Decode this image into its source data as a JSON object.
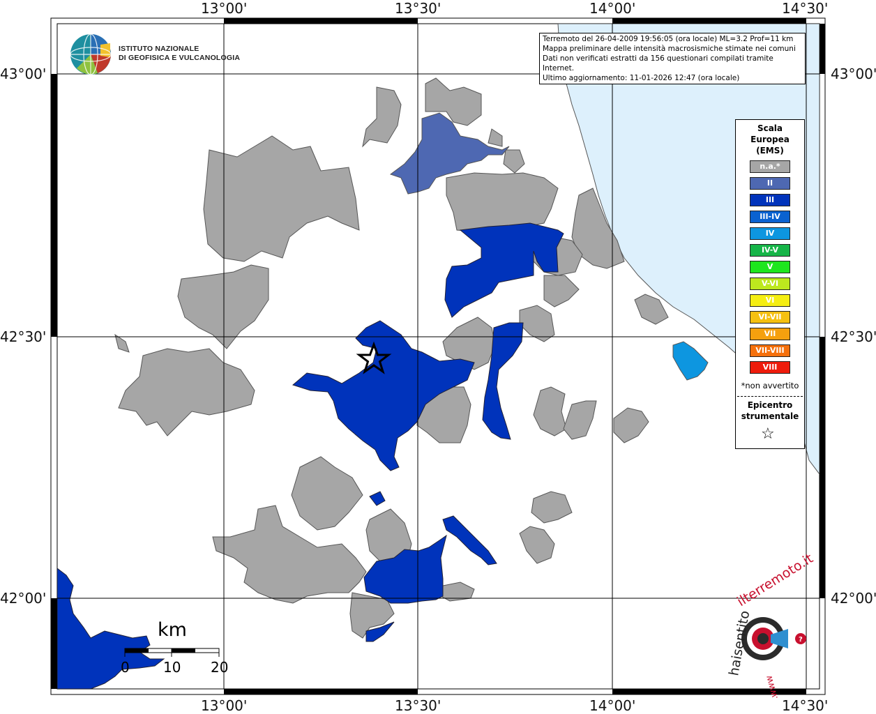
{
  "header": {
    "info_lines": [
      "Terremoto del 26-04-2009 19:56:05 (ora locale) ML=3.2 Prof=11 km",
      "Mappa preliminare delle intensità macrosismiche stimate nei comuni",
      "Dati non verificati estratti da 156 questionari compilati tramite Internet.",
      "Ultimo aggiornamento: 11-01-2026 12:47 (ora locale)"
    ]
  },
  "logo": {
    "line1": "ISTITUTO NAZIONALE",
    "line2": "DI GEOFISICA E VULCANOLOGIA"
  },
  "axes": {
    "top": [
      "13°00'",
      "13°30'",
      "14°00'",
      "14°30'"
    ],
    "bottom": [
      "13°00'",
      "13°30'",
      "14°00'",
      "14°30'"
    ],
    "left": [
      "43°00'",
      "42°30'",
      "42°00'"
    ],
    "right": [
      "43°00'",
      "42°30'",
      "42°00'"
    ]
  },
  "legend": {
    "title_lines": [
      "Scala",
      "Europea",
      "(EMS)"
    ],
    "items": [
      {
        "label": "n.a.*",
        "color": "#a6a6a6"
      },
      {
        "label": "II",
        "color": "#4e68b2"
      },
      {
        "label": "III",
        "color": "#0033bb"
      },
      {
        "label": "III-IV",
        "color": "#0a62d0"
      },
      {
        "label": "IV",
        "color": "#0d96e0"
      },
      {
        "label": "IV-V",
        "color": "#16b548"
      },
      {
        "label": "V",
        "color": "#1ee61e"
      },
      {
        "label": "V-VI",
        "color": "#bde81e"
      },
      {
        "label": "VI",
        "color": "#f5ee12"
      },
      {
        "label": "VI-VII",
        "color": "#f5c010"
      },
      {
        "label": "VII",
        "color": "#f5a00e"
      },
      {
        "label": "VII-VIII",
        "color": "#f5700c"
      },
      {
        "label": "VIII",
        "color": "#ee1c0c"
      }
    ],
    "note": "*non avvertito",
    "epicenter_lines": [
      "Epicentro",
      "strumentale"
    ]
  },
  "scale_bar": {
    "unit": "km",
    "ticks": [
      "0",
      "10",
      "20"
    ]
  },
  "watermark": {
    "text_dark": "haisentito",
    "text_red": "ilterremoto.it",
    "text_url": "www."
  },
  "colors": {
    "sea": "#ddf0fc",
    "na": "#a6a6a6",
    "ii": "#4e68b2",
    "iii": "#0033bb",
    "iv": "#0d96e0"
  }
}
